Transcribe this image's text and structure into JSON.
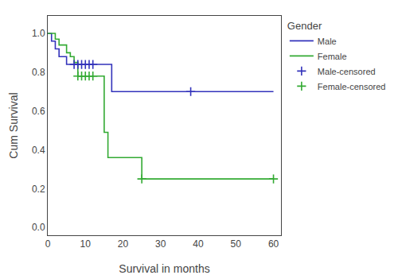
{
  "chart_data": {
    "type": "line",
    "x_label": "Survival in months",
    "y_label": "Cum Survival",
    "legend_title": "Gender",
    "legend": "right",
    "grid": false,
    "xlim": [
      0,
      62
    ],
    "ylim": [
      -0.04,
      1.09
    ],
    "xticks": [
      0,
      10,
      20,
      30,
      40,
      50,
      60
    ],
    "yticks": [
      {
        "value": 0.0,
        "label": "0.0"
      },
      0.2,
      0.4,
      0.6,
      0.8,
      {
        "value": 1.0,
        "label": "1.0"
      }
    ],
    "series": [
      {
        "name": "Male",
        "type": "step",
        "color": "#3333bb",
        "x": [
          0,
          1,
          2,
          3,
          5,
          6,
          7,
          8,
          9,
          13,
          17,
          60
        ],
        "values": [
          1.0,
          0.96,
          0.92,
          0.88,
          0.84,
          0.84,
          0.84,
          0.84,
          0.84,
          0.84,
          0.7,
          0.7
        ]
      },
      {
        "name": "Female",
        "type": "step",
        "color": "#33aa33",
        "x": [
          0,
          2,
          3,
          5,
          6,
          7,
          8,
          10,
          11,
          15,
          16,
          17,
          22,
          25,
          30,
          60
        ],
        "values": [
          1.0,
          0.97,
          0.94,
          0.9,
          0.88,
          0.85,
          0.78,
          0.78,
          0.78,
          0.49,
          0.36,
          0.36,
          0.36,
          0.25,
          0.25,
          0.25
        ]
      },
      {
        "name": "Male-censored",
        "type": "scatter",
        "marker": "plus",
        "color": "#3333bb",
        "x": [
          7,
          8,
          9,
          10,
          11,
          12,
          38
        ],
        "values": [
          0.84,
          0.84,
          0.84,
          0.84,
          0.84,
          0.84,
          0.7
        ]
      },
      {
        "name": "Female-censored",
        "type": "scatter",
        "marker": "plus",
        "color": "#33aa33",
        "x": [
          8,
          9,
          10,
          11,
          12,
          25,
          60
        ],
        "values": [
          0.78,
          0.78,
          0.78,
          0.78,
          0.78,
          0.25,
          0.25
        ]
      }
    ]
  }
}
